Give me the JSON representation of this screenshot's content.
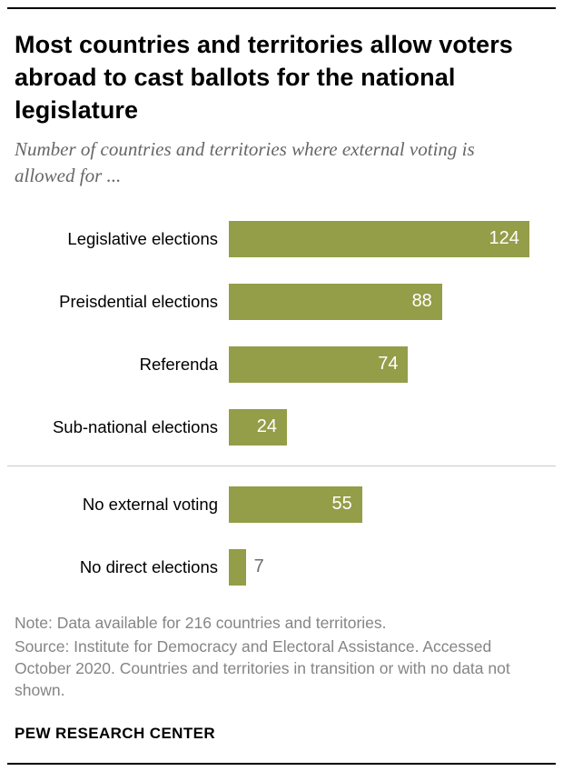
{
  "chart_data": {
    "type": "bar",
    "orientation": "horizontal",
    "title": "Most countries and territories allow voters abroad to cast ballots for the national legislature",
    "subtitle": "Number of countries and territories where external voting is allowed for ...",
    "categories": [
      "Legislative elections",
      "Preisdential elections",
      "Referenda",
      "Sub-national elections",
      "No external voting",
      "No direct elections"
    ],
    "values": [
      124,
      88,
      74,
      24,
      55,
      7
    ],
    "xlim": [
      0,
      132
    ],
    "bar_color": "#949d48",
    "grid": false,
    "legend": false,
    "divider_after_index": 3,
    "value_label_inside": [
      true,
      true,
      true,
      true,
      true,
      false
    ],
    "value_label_color_inside": "#ffffff",
    "value_label_color_outside": "#6e6e6e"
  },
  "footer": {
    "note": "Note: Data available for 216 countries and territories.",
    "source": "Source: Institute for Democracy and Electoral Assistance. Accessed October 2020. Countries and territories in transition or with no data not shown.",
    "brand": "PEW RESEARCH CENTER"
  }
}
